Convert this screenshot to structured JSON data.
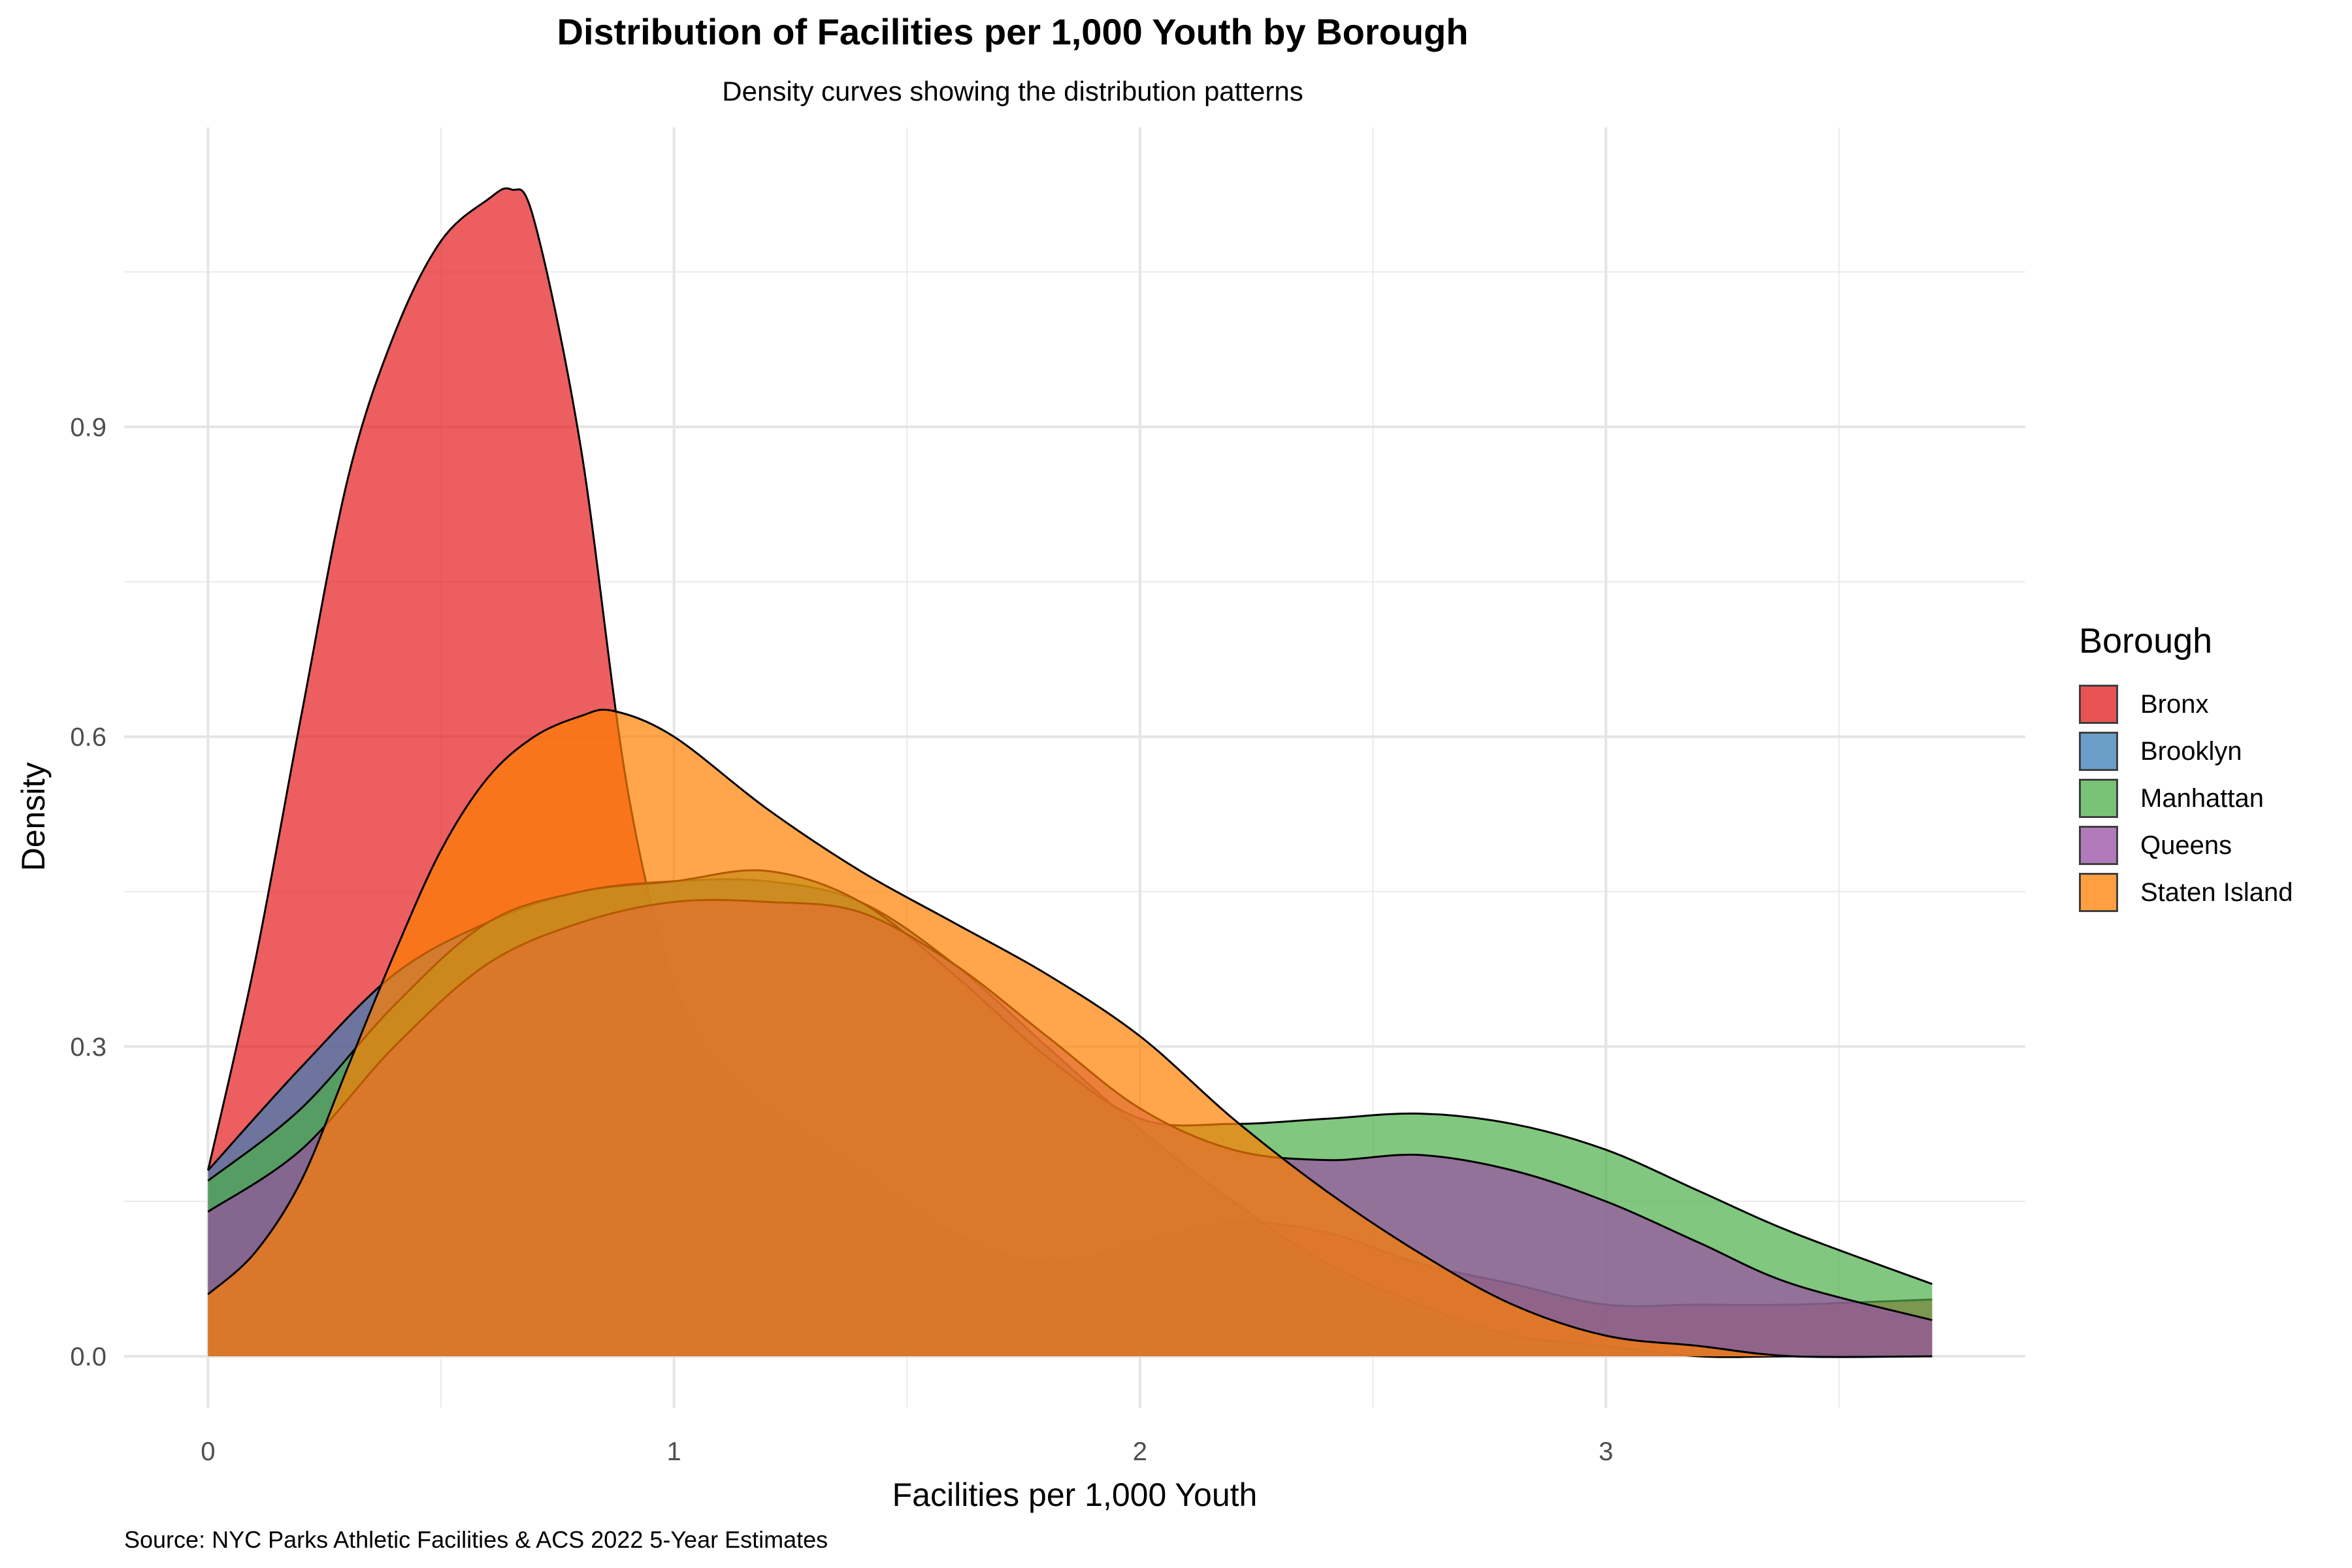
{
  "chart_data": {
    "type": "area",
    "subtype": "density",
    "title": "Distribution of Facilities per 1,000 Youth by Borough",
    "subtitle": "Density curves showing the distribution patterns",
    "xlabel": "Facilities per 1,000 Youth",
    "ylabel": "Density",
    "caption": "Source: NYC Parks Athletic Facilities & ACS 2022 5-Year Estimates",
    "xlim": [
      -0.18,
      3.9
    ],
    "ylim": [
      -0.05,
      1.19
    ],
    "x_ticks": [
      0,
      1,
      2,
      3
    ],
    "x_tick_labels": [
      "0",
      "1",
      "2",
      "3"
    ],
    "y_ticks": [
      0.0,
      0.3,
      0.6,
      0.9
    ],
    "y_tick_labels": [
      "0.0",
      "0.3",
      "0.6",
      "0.9"
    ],
    "grid": true,
    "legend": {
      "title": "Borough",
      "position": "right"
    },
    "series": [
      {
        "name": "Bronx",
        "color": "#E41A1C",
        "x": [
          0,
          0.1,
          0.2,
          0.3,
          0.4,
          0.5,
          0.6,
          0.65,
          0.7,
          0.8,
          0.9,
          1.0,
          1.1,
          1.2,
          1.4,
          1.6,
          1.8,
          2.0,
          2.2,
          2.4,
          2.6,
          2.8,
          3.0,
          3.2,
          3.4,
          3.7
        ],
        "y": [
          0.18,
          0.38,
          0.62,
          0.85,
          0.99,
          1.08,
          1.12,
          1.13,
          1.1,
          0.88,
          0.55,
          0.36,
          0.28,
          0.24,
          0.18,
          0.12,
          0.09,
          0.11,
          0.13,
          0.12,
          0.09,
          0.07,
          0.05,
          0.05,
          0.05,
          0.055
        ]
      },
      {
        "name": "Brooklyn",
        "color": "#377EB8",
        "x": [
          0,
          0.2,
          0.4,
          0.6,
          0.8,
          1.0,
          1.2,
          1.4,
          1.6,
          1.8,
          2.0,
          2.2,
          2.4,
          2.6,
          2.8,
          3.0,
          3.2,
          3.4,
          3.7
        ],
        "y": [
          0.18,
          0.28,
          0.37,
          0.42,
          0.45,
          0.46,
          0.46,
          0.44,
          0.38,
          0.3,
          0.22,
          0.15,
          0.09,
          0.05,
          0.02,
          0.01,
          0.0,
          0.0,
          0.0
        ]
      },
      {
        "name": "Manhattan",
        "color": "#4DAF4A",
        "x": [
          0,
          0.2,
          0.4,
          0.6,
          0.8,
          1.0,
          1.2,
          1.4,
          1.6,
          1.8,
          2.0,
          2.2,
          2.4,
          2.6,
          2.8,
          3.0,
          3.2,
          3.4,
          3.7
        ],
        "y": [
          0.17,
          0.24,
          0.34,
          0.42,
          0.45,
          0.46,
          0.47,
          0.44,
          0.37,
          0.29,
          0.23,
          0.225,
          0.23,
          0.235,
          0.225,
          0.2,
          0.16,
          0.12,
          0.07
        ]
      },
      {
        "name": "Queens",
        "color": "#984EA3",
        "x": [
          0,
          0.2,
          0.4,
          0.6,
          0.8,
          1.0,
          1.2,
          1.4,
          1.6,
          1.8,
          2.0,
          2.2,
          2.4,
          2.6,
          2.8,
          3.0,
          3.2,
          3.4,
          3.7
        ],
        "y": [
          0.14,
          0.2,
          0.3,
          0.38,
          0.42,
          0.44,
          0.44,
          0.43,
          0.38,
          0.31,
          0.24,
          0.2,
          0.19,
          0.195,
          0.18,
          0.15,
          0.11,
          0.07,
          0.035
        ]
      },
      {
        "name": "Staten Island",
        "color": "#FF7F00",
        "x": [
          0,
          0.1,
          0.2,
          0.3,
          0.4,
          0.5,
          0.6,
          0.7,
          0.8,
          0.87,
          1.0,
          1.2,
          1.4,
          1.6,
          1.8,
          2.0,
          2.2,
          2.4,
          2.6,
          2.8,
          3.0,
          3.2,
          3.4,
          3.7
        ],
        "y": [
          0.06,
          0.1,
          0.17,
          0.28,
          0.39,
          0.49,
          0.56,
          0.6,
          0.62,
          0.625,
          0.6,
          0.53,
          0.47,
          0.42,
          0.37,
          0.31,
          0.23,
          0.16,
          0.1,
          0.05,
          0.02,
          0.01,
          0.0,
          0.0
        ]
      }
    ]
  }
}
